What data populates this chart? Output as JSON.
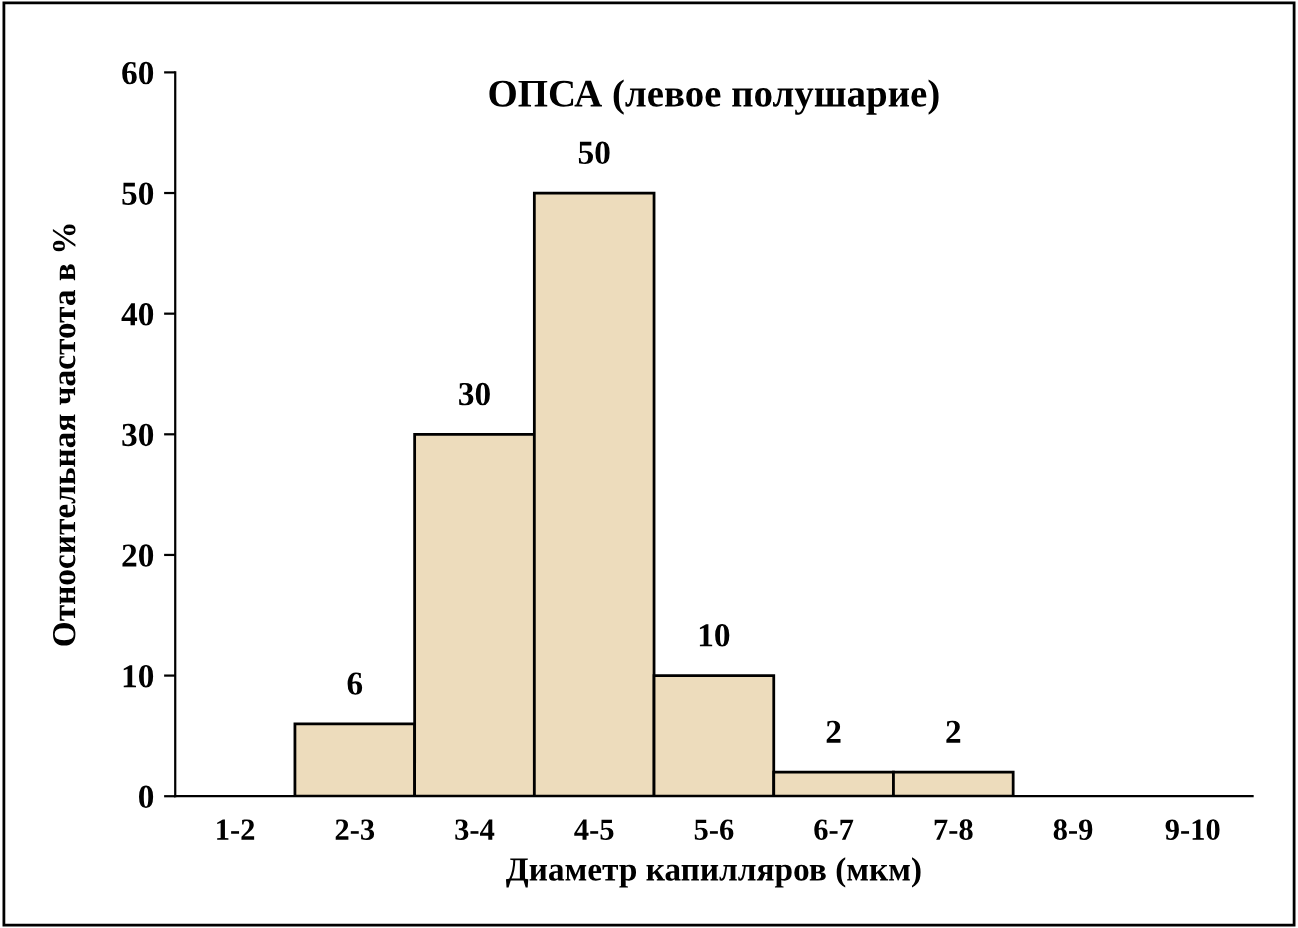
{
  "chart_data": {
    "type": "bar",
    "title": "ОПСА (левое полушарие)",
    "xlabel": "Диаметр капилляров (мкм)",
    "ylabel": "Относительная частота в %",
    "categories": [
      "1-2",
      "2-3",
      "3-4",
      "4-5",
      "5-6",
      "6-7",
      "7-8",
      "8-9",
      "9-10"
    ],
    "values": [
      0,
      6,
      30,
      50,
      10,
      2,
      2,
      0,
      0
    ],
    "value_labels": [
      null,
      "6",
      "30",
      "50",
      "10",
      "2",
      "2",
      null,
      null
    ],
    "color": "#eddcbc",
    "ylim": [
      0,
      60
    ],
    "yticks": [
      0,
      10,
      20,
      30,
      40,
      50,
      60
    ],
    "grid": false,
    "legend": false
  }
}
